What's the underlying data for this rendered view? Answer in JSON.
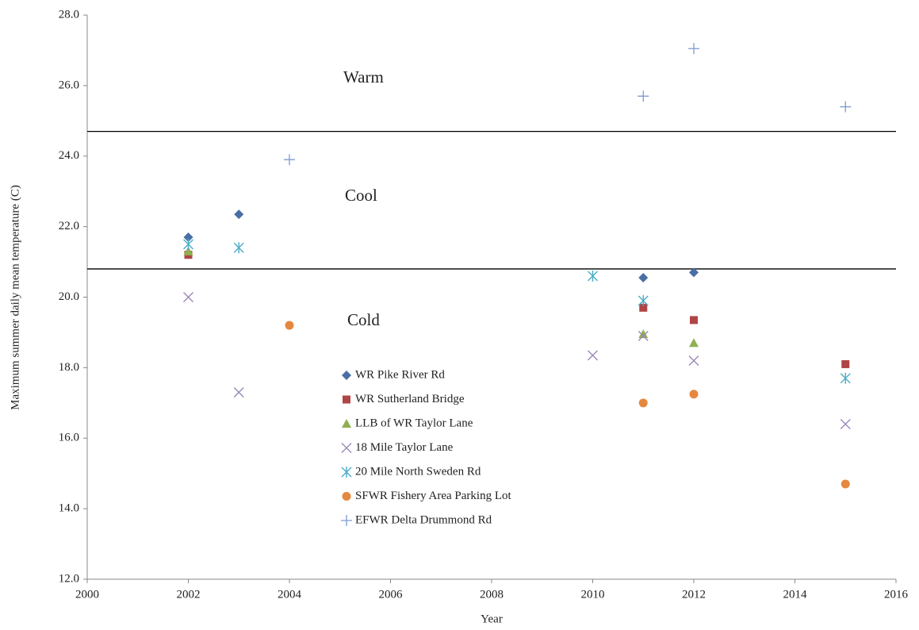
{
  "chart_data": {
    "type": "scatter",
    "x_label": "Year",
    "y_label": "Maximum  summer daily mean temperature (C)",
    "xlim": [
      2000,
      2016
    ],
    "xticks": [
      2000,
      2002,
      2004,
      2006,
      2008,
      2010,
      2012,
      2014,
      2016
    ],
    "ylim": [
      12,
      28
    ],
    "yticks": [
      {
        "value": 12,
        "label": "12.0"
      },
      {
        "value": 14,
        "label": "14.0"
      },
      {
        "value": 16,
        "label": "16.0"
      },
      {
        "value": 18,
        "label": "18.0"
      },
      {
        "value": 20,
        "label": "20.0"
      },
      {
        "value": 22,
        "label": "22.0"
      },
      {
        "value": 24,
        "label": "24.0"
      },
      {
        "value": 26,
        "label": "26.0"
      },
      {
        "value": 28,
        "label": "28.0"
      }
    ],
    "grid": false,
    "reference_lines": [
      {
        "value": 24.7,
        "color": "#000000"
      },
      {
        "value": 20.8,
        "color": "#000000"
      }
    ],
    "annotations": [
      {
        "text": "Warm",
        "color": "#e02020"
      },
      {
        "text": "Cool",
        "color": "#22a84a"
      },
      {
        "text": "Cold",
        "color": "#4a80c0"
      }
    ],
    "series": [
      {
        "name": "WR Pike River Rd",
        "color": "#4a6fa5",
        "marker": "diamond",
        "x": [
          2002,
          2003,
          2011,
          2012
        ],
        "values": [
          21.7,
          22.35,
          20.55,
          20.7
        ]
      },
      {
        "name": "WR Sutherland Bridge",
        "color": "#b04545",
        "marker": "square",
        "x": [
          2002,
          2011,
          2012,
          2015
        ],
        "values": [
          21.2,
          19.7,
          19.35,
          18.1
        ]
      },
      {
        "name": "LLB of WR Taylor Lane",
        "color": "#8fb050",
        "marker": "triangle",
        "x": [
          2002,
          2011,
          2012
        ],
        "values": [
          21.3,
          18.95,
          18.7
        ]
      },
      {
        "name": "18 Mile Taylor Lane",
        "color": "#9b87b8",
        "marker": "x",
        "x": [
          2002,
          2003,
          2010,
          2011,
          2012,
          2015
        ],
        "values": [
          20.0,
          17.3,
          18.35,
          18.9,
          18.2,
          16.4
        ]
      },
      {
        "name": "20 Mile North Sweden Rd",
        "color": "#4bacc6",
        "marker": "asterisk",
        "x": [
          2002,
          2003,
          2010,
          2011,
          2015
        ],
        "values": [
          21.5,
          21.4,
          20.6,
          19.9,
          17.7
        ]
      },
      {
        "name": "SFWR Fishery Area Parking Lot",
        "color": "#e5883f",
        "marker": "circle",
        "x": [
          2004,
          2011,
          2012,
          2015
        ],
        "values": [
          19.2,
          17.0,
          17.25,
          14.7
        ]
      },
      {
        "name": "EFWR Delta Drummond Rd",
        "color": "#7f9ad0",
        "marker": "plus",
        "x": [
          2004,
          2011,
          2012,
          2015
        ],
        "values": [
          23.9,
          25.7,
          27.05,
          25.4
        ]
      }
    ]
  }
}
